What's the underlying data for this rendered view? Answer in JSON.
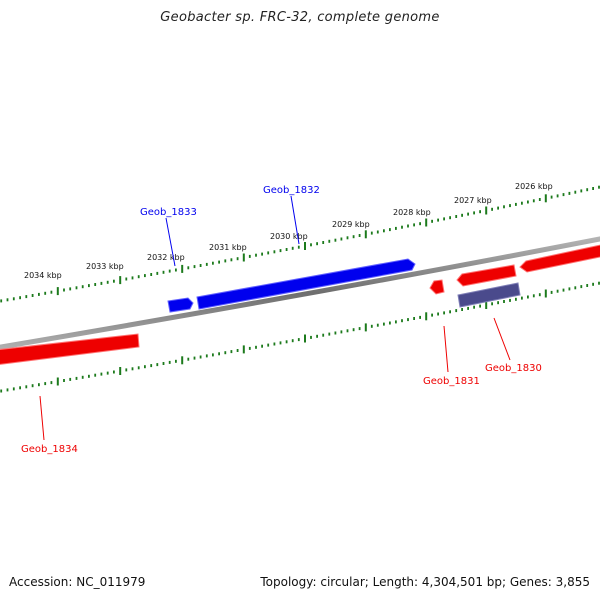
{
  "title": "Geobacter sp. FRC-32, complete genome",
  "footer": {
    "accession": "Accession: NC_011979",
    "summary": "Topology: circular; Length: 4,304,501 bp; Genes: 3,855"
  },
  "colors": {
    "backbone": "#7a7a7a",
    "tick": "#1c7a1c",
    "forward_gene": "#0000ee",
    "reverse_gene": "#ee0000",
    "other_gene": "#4a4a8c"
  },
  "scale_labels": [
    "2026 kbp",
    "2027 kbp",
    "2028 kbp",
    "2029 kbp",
    "2030 kbp",
    "2031 kbp",
    "2032 kbp",
    "2033 kbp",
    "2034 kbp"
  ],
  "genes": [
    {
      "label": "Geob_1830",
      "strand": "reverse"
    },
    {
      "label": "Geob_1831",
      "strand": "reverse"
    },
    {
      "label": "Geob_1832",
      "strand": "forward"
    },
    {
      "label": "Geob_1833",
      "strand": "forward"
    },
    {
      "label": "Geob_1834",
      "strand": "reverse"
    }
  ]
}
